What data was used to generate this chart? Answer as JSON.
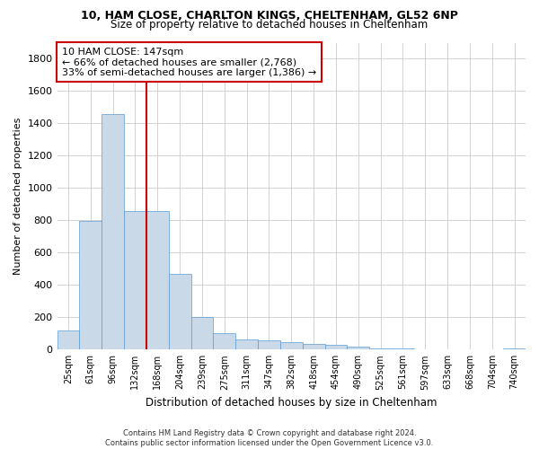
{
  "title1": "10, HAM CLOSE, CHARLTON KINGS, CHELTENHAM, GL52 6NP",
  "title2": "Size of property relative to detached houses in Cheltenham",
  "xlabel": "Distribution of detached houses by size in Cheltenham",
  "ylabel": "Number of detached properties",
  "footer1": "Contains HM Land Registry data © Crown copyright and database right 2024.",
  "footer2": "Contains public sector information licensed under the Open Government Licence v3.0.",
  "annotation_title": "10 HAM CLOSE: 147sqm",
  "annotation_line1": "← 66% of detached houses are smaller (2,768)",
  "annotation_line2": "33% of semi-detached houses are larger (1,386) →",
  "bar_color": "#c9d9e8",
  "bar_edge_color": "#5b9bd5",
  "redline_color": "#cc0000",
  "background_color": "#ffffff",
  "grid_color": "#cccccc",
  "categories": [
    "25sqm",
    "61sqm",
    "96sqm",
    "132sqm",
    "168sqm",
    "204sqm",
    "239sqm",
    "275sqm",
    "311sqm",
    "347sqm",
    "382sqm",
    "418sqm",
    "454sqm",
    "490sqm",
    "525sqm",
    "561sqm",
    "597sqm",
    "633sqm",
    "668sqm",
    "704sqm",
    "740sqm"
  ],
  "values": [
    120,
    795,
    1460,
    860,
    860,
    470,
    200,
    100,
    65,
    60,
    45,
    35,
    28,
    18,
    8,
    5,
    3,
    2,
    1,
    1,
    10
  ],
  "redline_index": 3,
  "ylim": [
    0,
    1900
  ],
  "yticks": [
    0,
    200,
    400,
    600,
    800,
    1000,
    1200,
    1400,
    1600,
    1800
  ]
}
